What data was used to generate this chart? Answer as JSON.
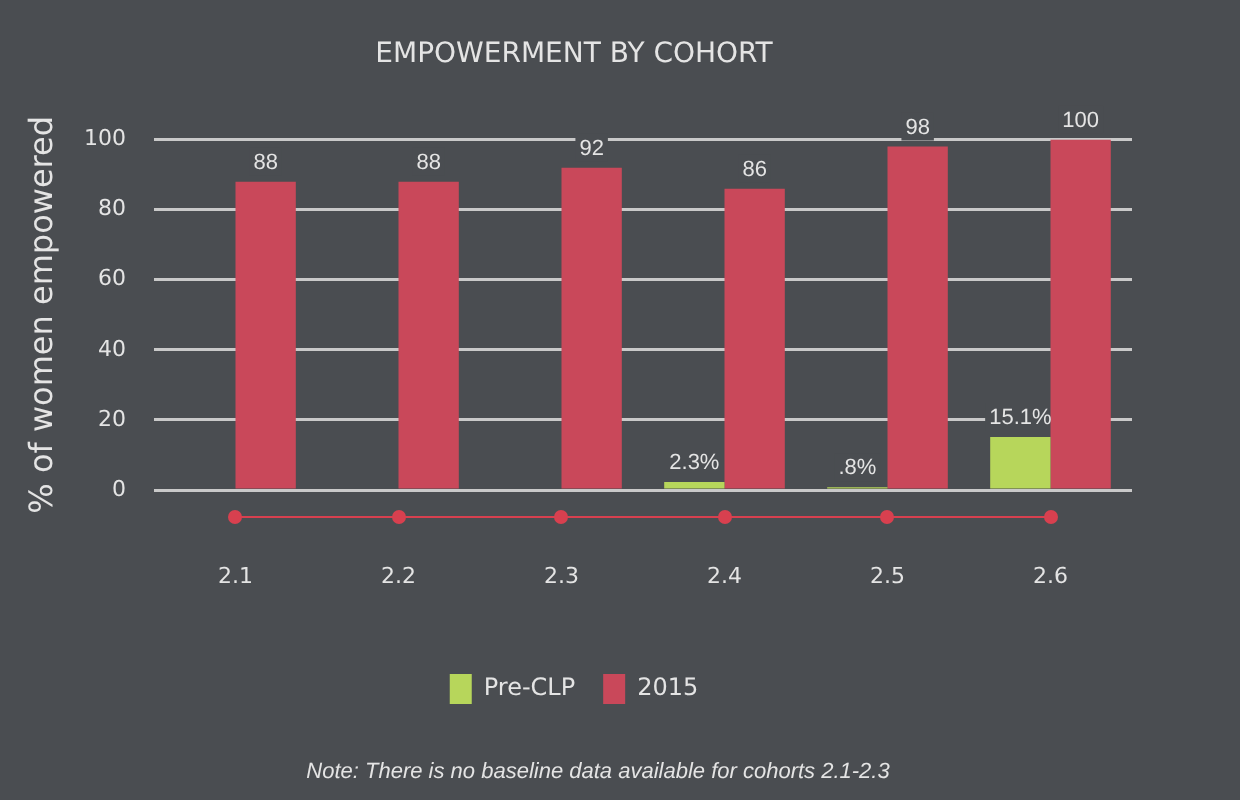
{
  "chart_data": {
    "type": "bar",
    "title": "EMPOWERMENT BY COHORT",
    "ylabel": "% of women empowered",
    "categories": [
      "2.1",
      "2.2",
      "2.3",
      "2.4",
      "2.5",
      "2.6"
    ],
    "series": [
      {
        "name": "Pre-CLP",
        "color": "#b7d65b",
        "values": [
          null,
          null,
          null,
          2.3,
          0.8,
          15.1
        ],
        "value_labels": [
          null,
          null,
          null,
          "2.3%",
          ".8%",
          "15.1%"
        ]
      },
      {
        "name": "2015",
        "color": "#c9485a",
        "values": [
          88,
          88,
          92,
          86,
          98,
          100
        ],
        "value_labels": [
          "88",
          "88",
          "92",
          "86",
          "98",
          "100"
        ]
      }
    ],
    "ylim": [
      0,
      100
    ],
    "yticks": [
      0,
      20,
      40,
      60,
      80,
      100
    ],
    "grid": "y",
    "legend": "bottom",
    "annotations": [
      "Note: There is no baseline data available for cohorts 2.1-2.3"
    ]
  }
}
